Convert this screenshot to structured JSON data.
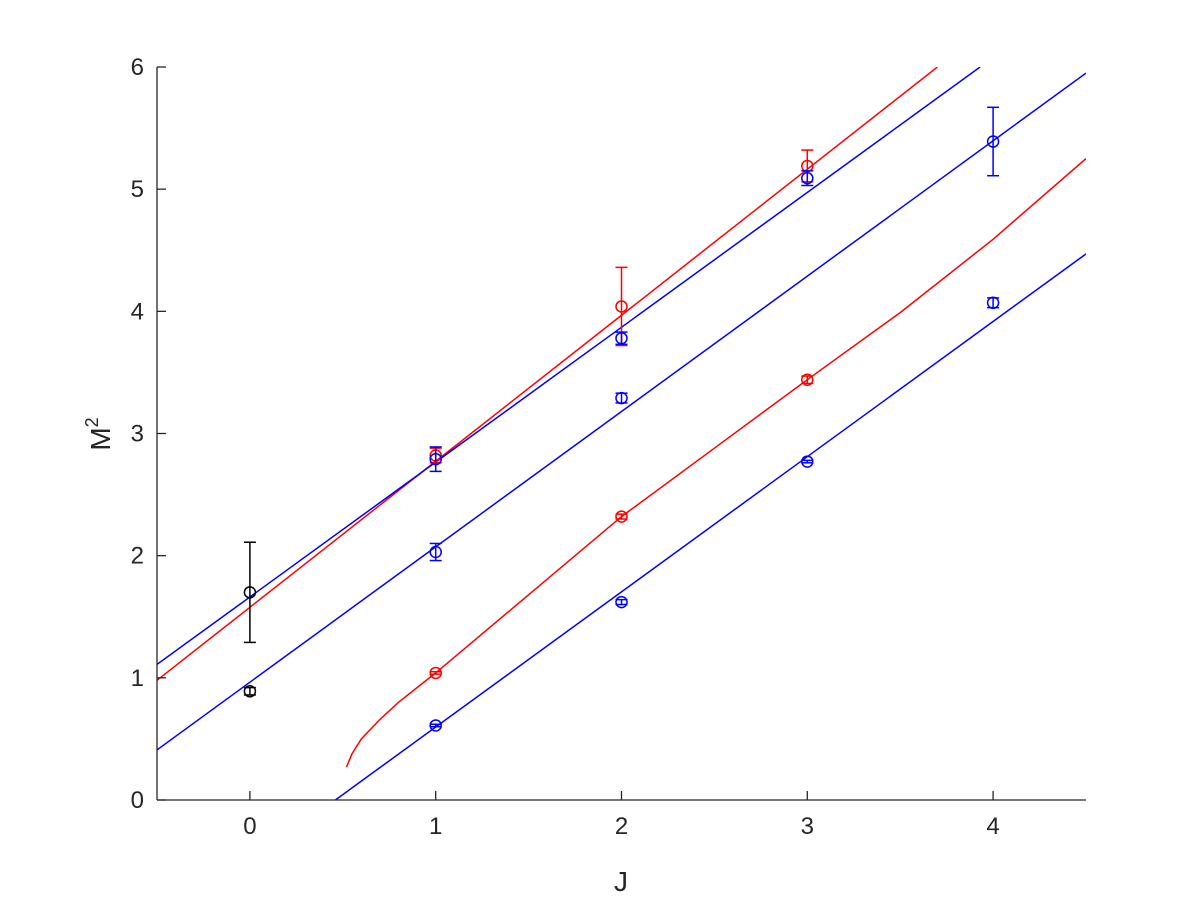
{
  "chart_data": {
    "type": "scatter",
    "title": "",
    "xlabel": "J",
    "ylabel": "M",
    "ylabel_superscript": "2",
    "xlim": [
      -0.5,
      4.5
    ],
    "ylim": [
      0,
      6
    ],
    "xticks": [
      0,
      1,
      2,
      3,
      4
    ],
    "yticks": [
      0,
      1,
      2,
      3,
      4,
      5,
      6
    ],
    "grid": false,
    "legend": "none",
    "colors": {
      "red": "#ff0000",
      "blue": "#0000ff",
      "black": "#000000",
      "axis": "#262626"
    },
    "points": [
      {
        "x": 0,
        "y": 1.7,
        "err": 0.41,
        "color": "black"
      },
      {
        "x": 0,
        "y": 0.89,
        "err": 0.03,
        "color": "black"
      },
      {
        "x": 1,
        "y": 2.82,
        "err": 0.06,
        "color": "red"
      },
      {
        "x": 1,
        "y": 2.79,
        "err": 0.1,
        "color": "blue"
      },
      {
        "x": 1,
        "y": 2.03,
        "err": 0.07,
        "color": "blue"
      },
      {
        "x": 1,
        "y": 1.04,
        "err": 0.01,
        "color": "red"
      },
      {
        "x": 1,
        "y": 0.61,
        "err": 0.01,
        "color": "blue"
      },
      {
        "x": 2,
        "y": 4.04,
        "err": 0.32,
        "color": "red"
      },
      {
        "x": 2,
        "y": 3.78,
        "err": 0.05,
        "color": "blue"
      },
      {
        "x": 2,
        "y": 3.29,
        "err": 0.04,
        "color": "blue"
      },
      {
        "x": 2,
        "y": 2.32,
        "err": 0.02,
        "color": "red"
      },
      {
        "x": 2,
        "y": 1.62,
        "err": 0.02,
        "color": "blue"
      },
      {
        "x": 3,
        "y": 5.19,
        "err": 0.13,
        "color": "red"
      },
      {
        "x": 3,
        "y": 5.09,
        "err": 0.06,
        "color": "blue"
      },
      {
        "x": 3,
        "y": 3.44,
        "err": 0.03,
        "color": "red"
      },
      {
        "x": 3,
        "y": 2.77,
        "err": 0.01,
        "color": "blue"
      },
      {
        "x": 4,
        "y": 5.39,
        "err": 0.28,
        "color": "blue"
      },
      {
        "x": 4,
        "y": 4.07,
        "err": 0.04,
        "color": "blue"
      }
    ],
    "fit_lines": [
      {
        "color": "red",
        "points": [
          [
            -0.5,
            0.98
          ],
          [
            3.7,
            6.0
          ]
        ]
      },
      {
        "color": "blue",
        "points": [
          [
            -0.5,
            1.11
          ],
          [
            3.93,
            6.0
          ]
        ]
      },
      {
        "color": "blue",
        "points": [
          [
            -0.5,
            0.41
          ],
          [
            4.5,
            5.95
          ]
        ]
      },
      {
        "color": "blue",
        "points": [
          [
            0.46,
            0.0
          ],
          [
            4.5,
            4.47
          ]
        ]
      },
      {
        "color": "red",
        "points": [
          [
            0.52,
            0.27
          ],
          [
            0.55,
            0.38
          ],
          [
            0.6,
            0.5
          ],
          [
            0.7,
            0.66
          ],
          [
            0.8,
            0.8
          ],
          [
            1.0,
            1.04
          ],
          [
            1.5,
            1.68
          ],
          [
            2.0,
            2.32
          ],
          [
            2.5,
            2.88
          ],
          [
            3.0,
            3.44
          ],
          [
            3.5,
            3.99
          ],
          [
            4.0,
            4.59
          ],
          [
            4.5,
            5.25
          ]
        ]
      }
    ]
  }
}
